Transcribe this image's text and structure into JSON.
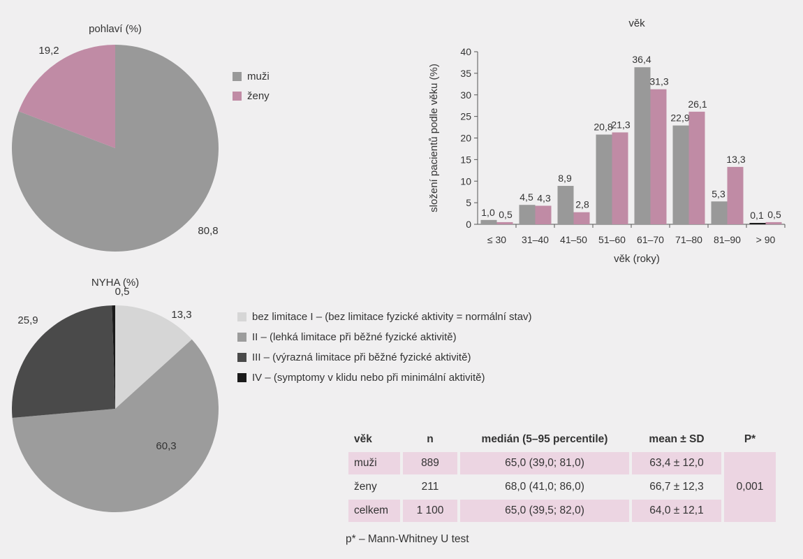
{
  "colors": {
    "muzi": "#999999",
    "zeny": "#c08ba5",
    "nyha1": "#d6d6d6",
    "nyha2": "#9c9c9c",
    "nyha3": "#4a4a4a",
    "nyha4": "#1a1a1a",
    "table_shade": "#ecd5e2",
    "background": "#f0eff0"
  },
  "chart_data": [
    {
      "type": "pie",
      "title": "pohlaví (%)",
      "labels": [
        "muži",
        "ženy"
      ],
      "values": [
        80.8,
        19.2
      ],
      "value_labels": [
        "80,8",
        "19,2"
      ],
      "legend": "right"
    },
    {
      "type": "bar",
      "title": "věk",
      "xlabel": "věk (roky)",
      "ylabel": "složení pacientů podle věku (%)",
      "ylim": [
        0,
        40
      ],
      "yticks": [
        0,
        5,
        10,
        15,
        20,
        25,
        30,
        35,
        40
      ],
      "categories": [
        "≤ 30",
        "31–40",
        "41–50",
        "51–60",
        "61–70",
        "71–80",
        "81–90",
        "> 90"
      ],
      "series": [
        {
          "values": [
            1.0,
            4.5,
            8.9,
            20.8,
            36.4,
            22.9,
            5.3,
            0.1
          ],
          "labels": [
            "1,0",
            "4,5",
            "8,9",
            "20,8",
            "36,4",
            "22,9",
            "5,3",
            "0,1"
          ]
        },
        {
          "values": [
            0.5,
            4.3,
            2.8,
            21.3,
            31.3,
            26.1,
            13.3,
            0.5
          ],
          "labels": [
            "0,5",
            "4,3",
            "2,8",
            "21,3",
            "31,3",
            "26,1",
            "13,3",
            "0,5"
          ]
        }
      ],
      "grid": false
    },
    {
      "type": "pie",
      "title": "NYHA (%)",
      "labels": [
        "bez limitace I – (bez limitace fyzické aktivity = normální stav)",
        "II – (lehká limitace při běžné fyzické aktivitě)",
        "III – (výrazná limitace při běžné fyzické aktivitě)",
        "IV – (symptomy v klidu nebo při  minimální aktivitě)"
      ],
      "values": [
        13.3,
        60.3,
        25.9,
        0.5
      ],
      "value_labels": [
        "13,3",
        "60,3",
        "25,9",
        "0,5"
      ],
      "legend": "right"
    },
    {
      "type": "table",
      "columns": [
        "věk",
        "n",
        "medián (5–95 percentile)",
        "mean ± SD",
        "P*"
      ],
      "rows": [
        [
          "muži",
          "889",
          "65,0 (39,0; 81,0)",
          "63,4 ± 12,0"
        ],
        [
          "ženy",
          "211",
          "68,0 (41,0; 86,0)",
          "66,7 ± 12,3"
        ],
        [
          "celkem",
          "1 100",
          "65,0 (39,5; 82,0)",
          "64,0 ± 12,1"
        ]
      ],
      "p_value": "0,001"
    }
  ],
  "legend_sex": {
    "muzi": "muži",
    "zeny": "ženy"
  },
  "note": "p* – Mann-Whitney U test"
}
